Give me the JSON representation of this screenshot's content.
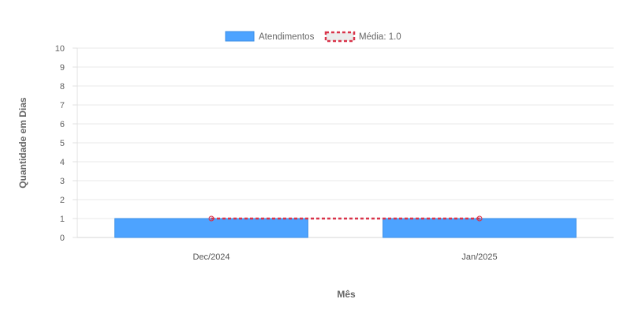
{
  "chart_data": {
    "type": "bar",
    "categories": [
      "Dec/2024",
      "Jan/2025"
    ],
    "series": [
      {
        "name": "Atendimentos",
        "values": [
          1,
          1
        ],
        "color": "#4da3ff",
        "border_color": "#3a8ee6",
        "kind": "bar"
      },
      {
        "name": "Média: 1.0",
        "values": [
          1.0,
          1.0
        ],
        "color": "#d9344a",
        "kind": "line",
        "style": "dashed"
      }
    ],
    "xlabel": "Mês",
    "ylabel": "Quantidade em Dias",
    "ylim": [
      0,
      10
    ],
    "yticks": [
      0,
      1,
      2,
      3,
      4,
      5,
      6,
      7,
      8,
      9,
      10
    ],
    "grid": true,
    "legend_position": "top-center"
  }
}
